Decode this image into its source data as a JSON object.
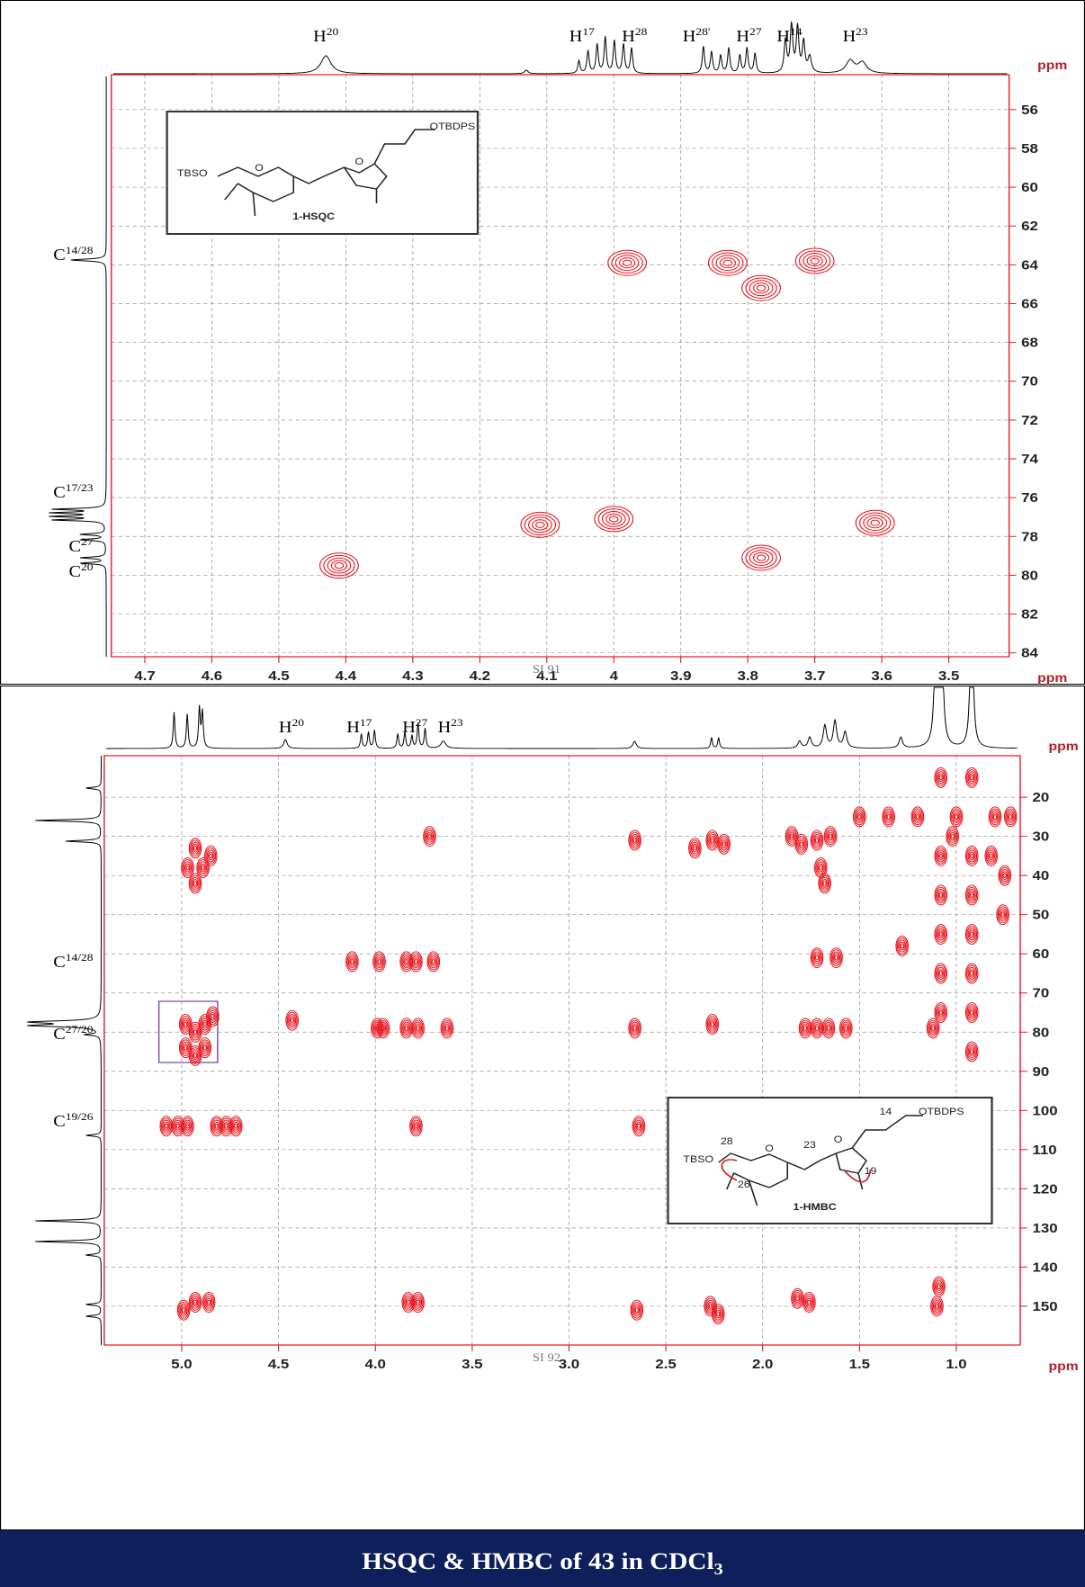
{
  "chart_data": [
    {
      "type": "contour",
      "x_label": "ppm",
      "y_label": "ppm",
      "xlim": [
        4.75,
        3.41
      ],
      "ylim": [
        54.2,
        84.2
      ],
      "xticks": [
        4.7,
        4.6,
        4.5,
        4.4,
        4.3,
        4.2,
        4.1,
        4.0,
        3.9,
        3.8,
        3.7,
        3.6,
        3.5
      ],
      "yticks": [
        56,
        58,
        60,
        62,
        64,
        66,
        68,
        70,
        72,
        74,
        76,
        78,
        80,
        82,
        84
      ],
      "grid": true,
      "color": "#e8141c",
      "x": [
        4.41,
        4.0,
        3.98,
        3.83,
        3.7,
        3.78,
        3.61,
        4.11,
        3.78
      ],
      "y": [
        79.5,
        77.1,
        63.9,
        63.9,
        63.8,
        79.1,
        77.3,
        77.4,
        65.2
      ],
      "h_labels": [
        {
          "text": "H",
          "sup": "20"
        },
        {
          "text": "H",
          "sup": "17"
        },
        {
          "text": "H",
          "sup": "28"
        },
        {
          "text": "H",
          "sup": "28'"
        },
        {
          "text": "H",
          "sup": "27"
        },
        {
          "text": "H",
          "sup": "14"
        },
        {
          "text": "H",
          "sup": "23"
        }
      ],
      "c_labels": [
        {
          "text": "C",
          "sup": "14/28"
        },
        {
          "text": "C",
          "sup": "17/23"
        },
        {
          "text": "C",
          "sup": "27"
        },
        {
          "text": "C",
          "sup": "20"
        }
      ],
      "inset": {
        "texts": [
          "OTBDPS",
          "TBSO",
          "O",
          "O",
          "1-HSQC"
        ]
      },
      "footer": "SI 91"
    },
    {
      "type": "contour",
      "x_label": "ppm",
      "y_label": "ppm",
      "xlim": [
        5.4,
        0.67
      ],
      "ylim": [
        9.4,
        159.9
      ],
      "xticks": [
        {
          "value": 5,
          "label": "5.0"
        },
        4.5,
        {
          "value": 4,
          "label": "4.0"
        },
        3.5,
        {
          "value": 3,
          "label": "3.0"
        },
        2.5,
        {
          "value": 2,
          "label": "2.0"
        },
        1.5,
        {
          "value": 1,
          "label": "1.0"
        }
      ],
      "yticks": [
        20,
        30,
        40,
        50,
        60,
        70,
        80,
        90,
        100,
        110,
        120,
        130,
        140,
        150
      ],
      "grid": true,
      "color": "#e8141c",
      "x": [
        4.97,
        4.93,
        4.89,
        4.85,
        4.93,
        4.98,
        4.98,
        4.93,
        4.93,
        4.88,
        4.88,
        4.84,
        5.08,
        5.02,
        4.97,
        4.82,
        4.77,
        4.72,
        4.99,
        4.93,
        4.86,
        3.72,
        4.12,
        3.98,
        3.84,
        3.79,
        3.7,
        4.43,
        3.99,
        3.96,
        3.84,
        3.78,
        3.63,
        3.79,
        3.83,
        3.78,
        2.66,
        2.66,
        2.64,
        2.65,
        2.35,
        2.26,
        2.2,
        2.26,
        2.26,
        2.27,
        2.23,
        1.85,
        1.8,
        1.72,
        1.65,
        1.7,
        1.68,
        1.72,
        1.62,
        1.78,
        1.72,
        1.66,
        1.57,
        1.82,
        1.76,
        1.28,
        1.12,
        1.1,
        1.09,
        1.5,
        1.35,
        1.2,
        1.0,
        0.8,
        0.72,
        1.08,
        1.08,
        1.08,
        1.08,
        1.08,
        1.08,
        0.92,
        0.92,
        0.92,
        0.92,
        0.92,
        0.92,
        0.92,
        1.02,
        0.82,
        0.75,
        0.76
      ],
      "y": [
        38,
        33,
        38,
        35,
        42,
        78,
        84,
        80,
        86,
        78,
        84,
        76,
        104,
        104,
        104,
        104,
        104,
        104,
        151,
        149,
        149,
        30,
        62,
        62,
        62,
        62,
        62,
        77,
        79,
        79,
        79,
        79,
        79,
        104,
        149,
        149,
        31,
        79,
        104,
        151,
        33,
        31,
        32,
        78,
        104,
        150,
        152,
        30,
        32,
        31,
        30,
        38,
        42,
        61,
        61,
        79,
        79,
        79,
        79,
        148,
        149,
        58,
        79,
        150,
        145,
        25,
        25,
        25,
        25,
        25,
        25,
        15,
        35,
        45,
        55,
        65,
        75,
        15,
        35,
        45,
        55,
        65,
        75,
        85,
        30,
        35,
        40,
        50
      ],
      "h_labels": [
        {
          "text": "H",
          "sup": "20"
        },
        {
          "text": "H",
          "sup": "17"
        },
        {
          "text": "H",
          "sup": "27"
        },
        {
          "text": "H",
          "sup": "23"
        }
      ],
      "c_labels": [
        {
          "text": "C",
          "sup": "14/28"
        },
        {
          "text": "C",
          "sup": "27/20"
        },
        {
          "text": "C",
          "sup": "19/26"
        }
      ],
      "inset": {
        "texts": [
          "14",
          "OTBDPS",
          "TBSO",
          "28",
          "O",
          "23",
          "O",
          "26",
          "19",
          "1-HMBC"
        ]
      },
      "footer": "SI 92"
    }
  ],
  "caption": {
    "text": "HSQC & HMBC of 43 in CDCl",
    "sub": "3"
  }
}
